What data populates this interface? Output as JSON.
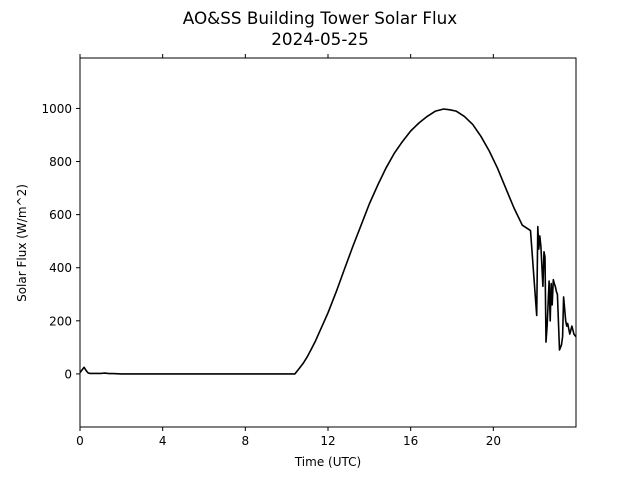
{
  "chart_data": {
    "type": "line",
    "title": "AO&SS Building Tower Solar Flux",
    "subtitle": "2024-05-25",
    "xlabel": "Time (UTC)",
    "ylabel": "Solar Flux (W/m^2)",
    "xlim": [
      0,
      24
    ],
    "ylim": [
      -200,
      1190
    ],
    "xticks": [
      0,
      4,
      8,
      12,
      16,
      20
    ],
    "yticks": [
      0,
      200,
      400,
      600,
      800,
      1000
    ],
    "grid": false,
    "line_color": "#000000",
    "series": [
      {
        "x": [
          0,
          0.1,
          0.2,
          0.3,
          0.4,
          0.5,
          0.6,
          0.8,
          1.0,
          1.2,
          1.4,
          1.6,
          2,
          4,
          6,
          8,
          10,
          10.4,
          10.6,
          10.8,
          11,
          11.2,
          11.4,
          11.6,
          11.8,
          12,
          12.4,
          12.8,
          13.2,
          13.6,
          14,
          14.4,
          14.8,
          15.2,
          15.6,
          16,
          16.4,
          16.8,
          17.2,
          17.6,
          17.9,
          18.2,
          18.6,
          19,
          19.4,
          19.8,
          20.2,
          20.6,
          21,
          21.4,
          21.8,
          22.1,
          22.15,
          22.2,
          22.25,
          22.3,
          22.4,
          22.45,
          22.5,
          22.55,
          22.6,
          22.7,
          22.75,
          22.8,
          22.85,
          22.9,
          22.95,
          23.0,
          23.05,
          23.1,
          23.2,
          23.3,
          23.35,
          23.4,
          23.5,
          23.55,
          23.6,
          23.7,
          23.8,
          23.9,
          24.0
        ],
        "y": [
          5,
          15,
          25,
          12,
          3,
          2,
          2,
          2,
          2,
          3,
          1,
          1,
          0,
          0,
          0,
          0,
          0,
          0,
          20,
          40,
          65,
          95,
          125,
          160,
          195,
          230,
          310,
          395,
          480,
          560,
          640,
          710,
          775,
          830,
          875,
          915,
          945,
          970,
          990,
          998,
          995,
          990,
          970,
          940,
          895,
          840,
          775,
          700,
          625,
          560,
          540,
          220,
          555,
          470,
          520,
          480,
          330,
          460,
          440,
          120,
          180,
          350,
          200,
          340,
          260,
          355,
          340,
          330,
          310,
          300,
          90,
          110,
          140,
          290,
          200,
          180,
          190,
          150,
          180,
          150,
          140
        ]
      }
    ]
  }
}
